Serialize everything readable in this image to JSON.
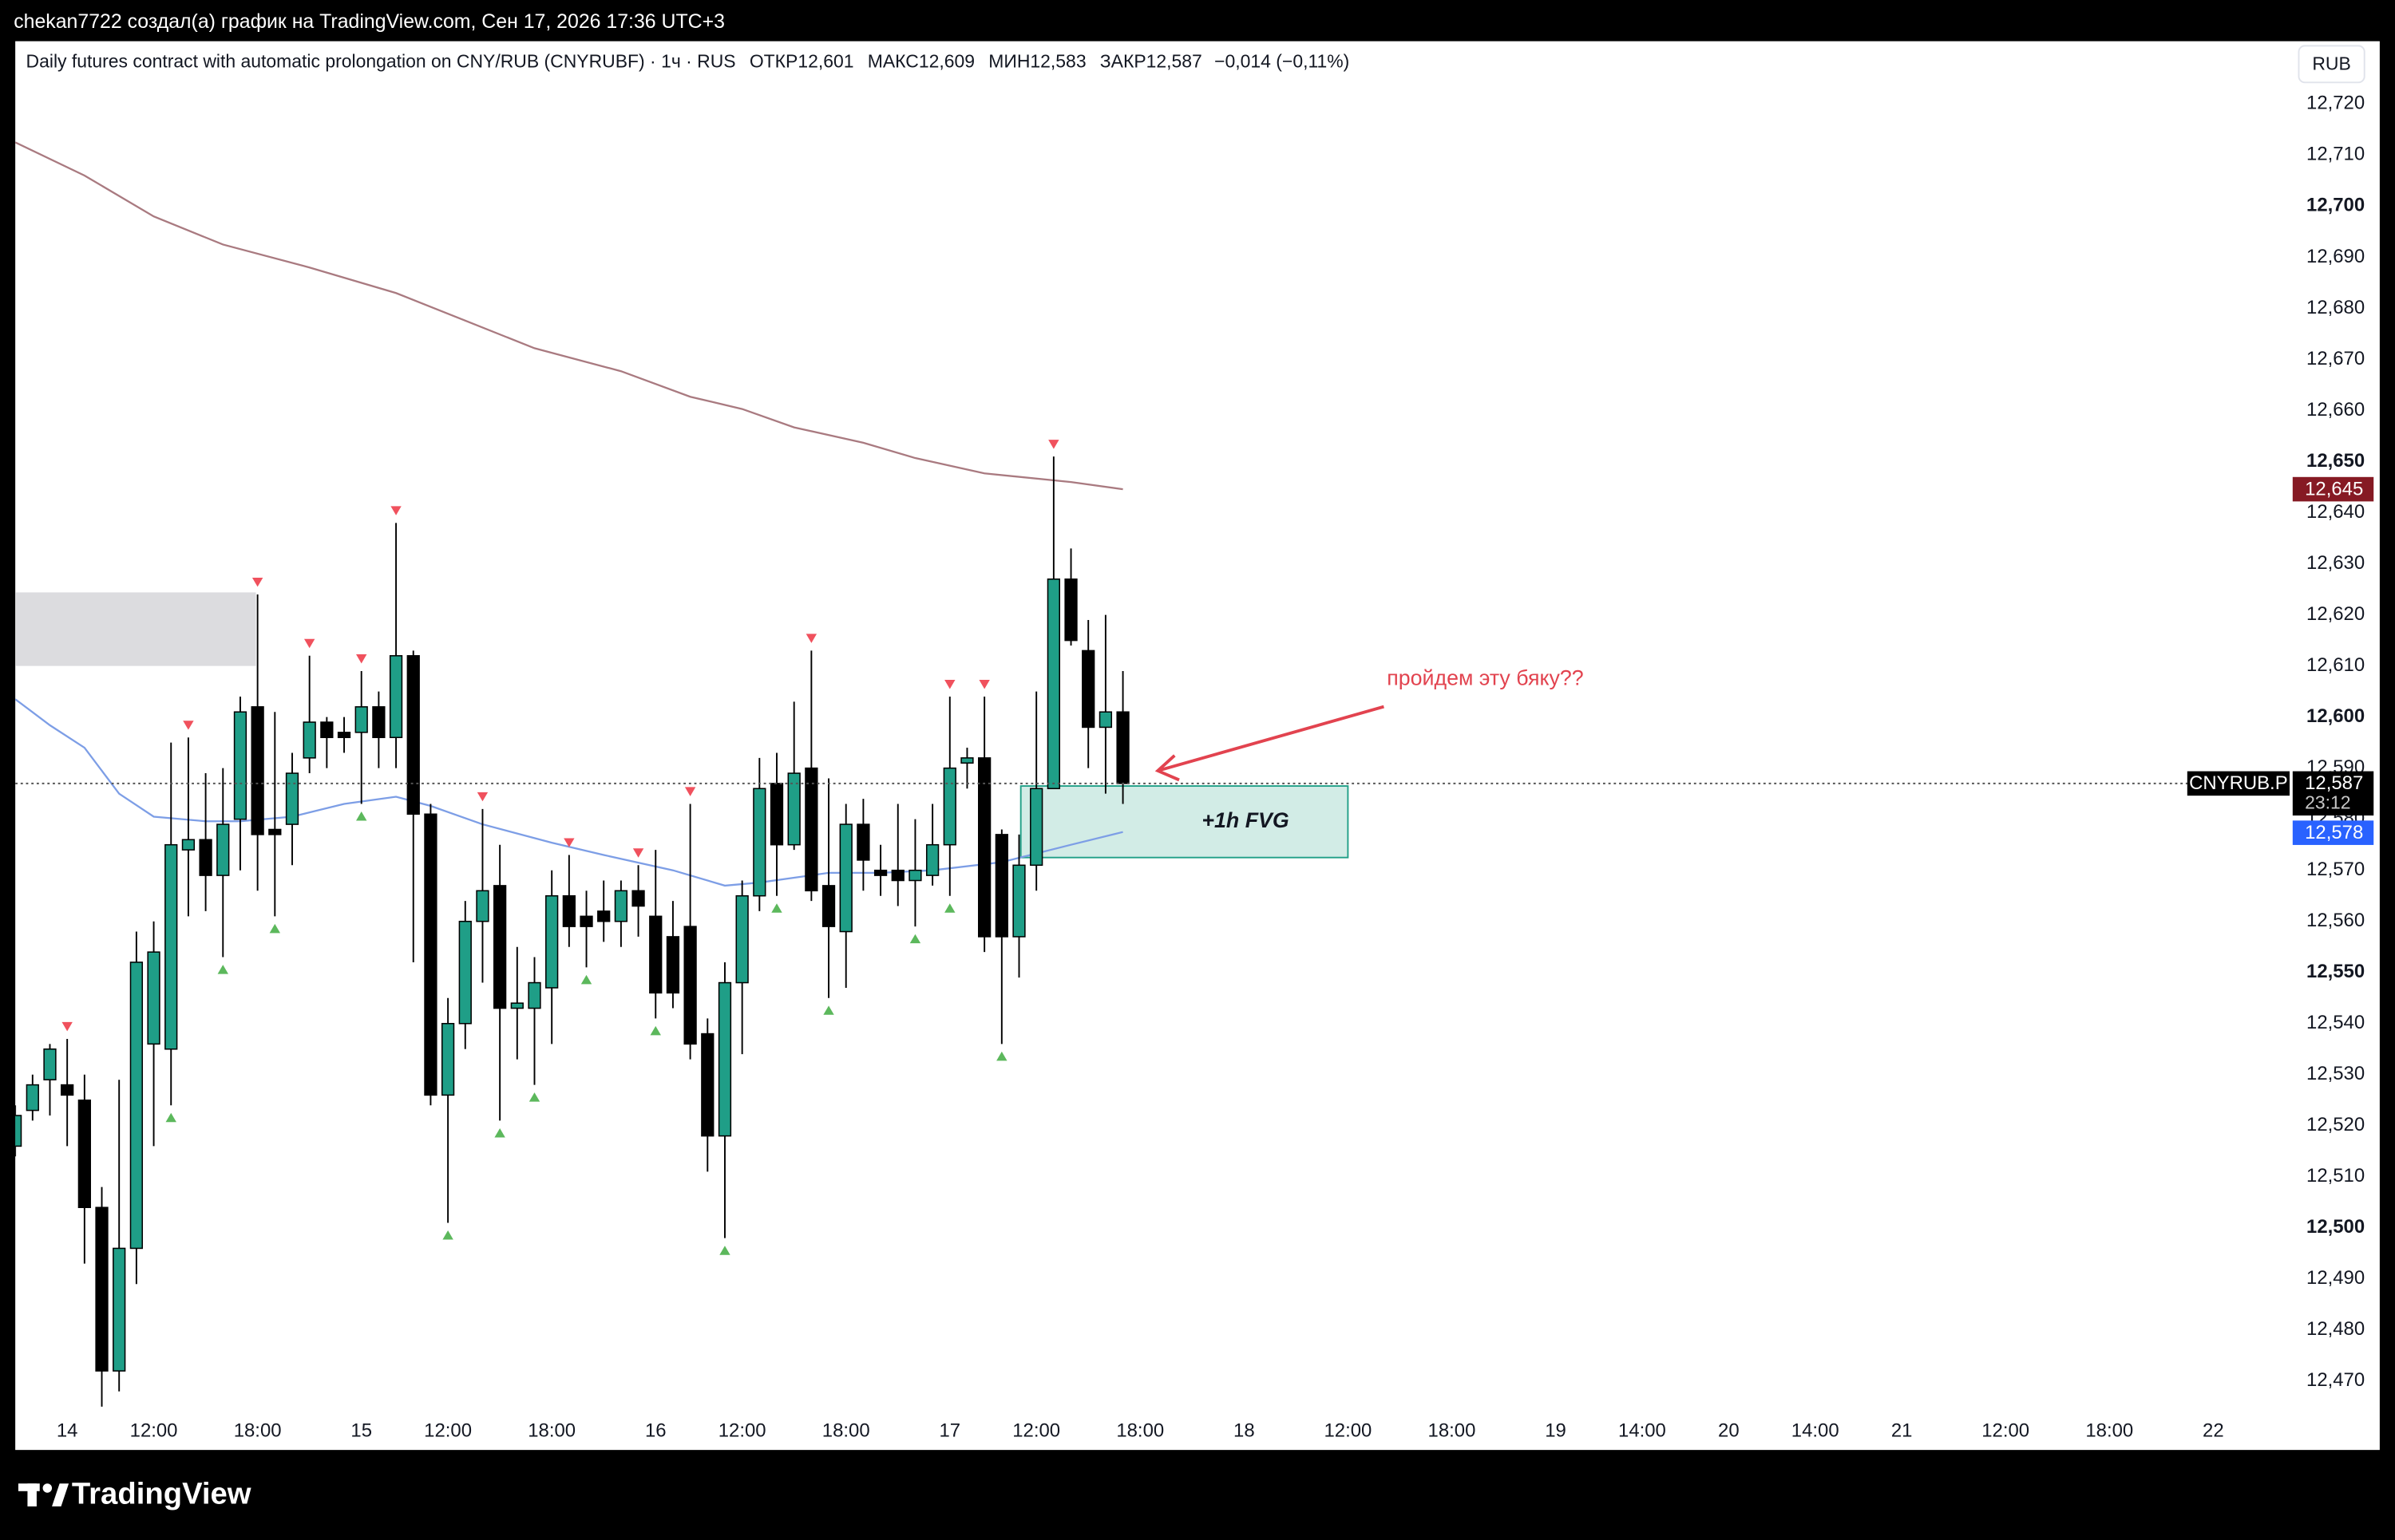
{
  "header": "chekan7722 создал(а) график на TradingView.com, Сен 17, 2026 17:36 UTC+3",
  "brand": "TradingView",
  "chart_data": {
    "type": "candlestick",
    "legend": {
      "title": "Daily futures contract with automatic prolongation on CNY/RUB (CNYRUBF) · 1ч · RUS",
      "items": [
        {
          "label": "ОТКР",
          "value": "12,601"
        },
        {
          "label": "МАКС",
          "value": "12,609"
        },
        {
          "label": "МИН",
          "value": "12,583"
        },
        {
          "label": "ЗАКР",
          "value": "12,587"
        }
      ],
      "change": "−0,014 (−0,11%)"
    },
    "currency": "RUB",
    "up_color": "#1f9e87",
    "down_color": "#000000",
    "x": [
      0,
      1,
      2,
      3,
      4,
      5,
      6,
      7,
      8,
      9,
      10,
      11,
      12,
      13,
      14,
      15,
      16,
      17,
      18,
      19,
      20,
      21,
      22,
      23,
      24,
      25,
      26,
      27,
      28,
      29,
      30,
      31,
      32,
      33,
      34,
      35,
      36,
      37,
      38,
      39,
      40,
      41,
      42,
      43,
      44,
      45,
      46,
      47,
      48,
      49,
      50,
      51,
      52,
      53,
      54,
      55,
      56,
      57,
      58,
      59,
      60,
      61,
      62,
      63,
      64
    ],
    "open": [
      12516,
      12523,
      12529,
      12528,
      12525,
      12504,
      12472,
      12496,
      12536,
      12535,
      12574,
      12576,
      12569,
      12580,
      12602,
      12578,
      12579,
      12592,
      12599,
      12597,
      12597,
      12602,
      12596,
      12612,
      12581,
      12526,
      12540,
      12560,
      12567,
      12543,
      12543,
      12547,
      12565,
      12561,
      12562,
      12560,
      12566,
      12561,
      12557,
      12559,
      12538,
      12518,
      12548,
      12565,
      12587,
      12575,
      12590,
      12567,
      12558,
      12579,
      12570,
      12570,
      12568,
      12569,
      12575,
      12591,
      12592,
      12577,
      12557,
      12571,
      12586,
      12627,
      12613,
      12598,
      12601
    ],
    "high": [
      12524,
      12530,
      12536,
      12537,
      12530,
      12508,
      12529,
      12558,
      12560,
      12595,
      12596,
      12589,
      12590,
      12604,
      12624,
      12601,
      12593,
      12612,
      12600,
      12600,
      12609,
      12605,
      12638,
      12613,
      12583,
      12545,
      12564,
      12582,
      12575,
      12555,
      12553,
      12570,
      12573,
      12566,
      12568,
      12568,
      12571,
      12574,
      12564,
      12583,
      12541,
      12552,
      12568,
      12592,
      12593,
      12603,
      12613,
      12588,
      12583,
      12584,
      12575,
      12583,
      12580,
      12583,
      12604,
      12594,
      12604,
      12578,
      12577,
      12605,
      12651,
      12633,
      12619,
      12620,
      12609
    ],
    "low": [
      12514,
      12521,
      12522,
      12516,
      12493,
      12465,
      12468,
      12489,
      12516,
      12524,
      12561,
      12562,
      12553,
      12570,
      12566,
      12561,
      12571,
      12589,
      12590,
      12593,
      12583,
      12590,
      12590,
      12552,
      12524,
      12501,
      12535,
      12548,
      12521,
      12533,
      12528,
      12536,
      12555,
      12551,
      12556,
      12555,
      12557,
      12541,
      12543,
      12533,
      12511,
      12498,
      12534,
      12562,
      12565,
      12574,
      12564,
      12545,
      12547,
      12566,
      12565,
      12563,
      12559,
      12567,
      12565,
      12586,
      12554,
      12536,
      12549,
      12566,
      12586,
      12614,
      12590,
      12585,
      12583
    ],
    "close": [
      12522,
      12528,
      12535,
      12526,
      12504,
      12472,
      12496,
      12552,
      12554,
      12575,
      12576,
      12569,
      12579,
      12601,
      12577,
      12577,
      12589,
      12599,
      12596,
      12596,
      12602,
      12596,
      12612,
      12581,
      12526,
      12540,
      12560,
      12566,
      12543,
      12544,
      12548,
      12565,
      12559,
      12559,
      12560,
      12566,
      12563,
      12546,
      12546,
      12536,
      12518,
      12548,
      12565,
      12586,
      12575,
      12589,
      12566,
      12559,
      12579,
      12572,
      12569,
      12568,
      12570,
      12575,
      12590,
      12592,
      12557,
      12557,
      12571,
      12586,
      12627,
      12615,
      12598,
      12601,
      12587
    ],
    "pivot_highs": [
      3,
      10,
      14,
      17,
      20,
      22,
      27,
      32,
      36,
      39,
      46,
      54,
      56,
      60
    ],
    "pivot_lows": [
      9,
      12,
      15,
      20,
      25,
      28,
      30,
      33,
      37,
      41,
      44,
      47,
      52,
      54,
      57
    ],
    "lines": [
      {
        "color": "#a97a80",
        "x": [
          0,
          4,
          8,
          12,
          17,
          22,
          26,
          30,
          35,
          39,
          42,
          45,
          49,
          52,
          56,
          61,
          64
        ],
        "values": [
          12712.5,
          12706,
          12698,
          12692.5,
          12688,
          12683,
          12677.6,
          12672.2,
          12667.7,
          12662.7,
          12660.3,
          12656.7,
          12653.7,
          12650.7,
          12647.7,
          12646,
          12644.6
        ]
      },
      {
        "color": "#7d9ee6",
        "x": [
          0,
          2,
          4,
          6,
          8,
          11,
          13,
          16,
          19,
          22,
          24,
          27,
          31,
          34,
          38,
          41,
          43,
          47,
          50,
          53,
          57,
          61,
          64
        ],
        "values": [
          12603.5,
          12598.4,
          12594,
          12585,
          12580.5,
          12579.6,
          12579.6,
          12580.5,
          12583,
          12584.4,
          12582.6,
          12579,
          12575.4,
          12573,
          12570,
          12567,
          12567.6,
          12569.5,
          12569.5,
          12570,
          12571.6,
          12575,
          12577.5
        ]
      }
    ],
    "zones": [
      {
        "color": "#dcdcdf",
        "xlim": [
          0,
          13.9
        ],
        "ylim": [
          12610,
          12624.4
        ]
      },
      {
        "color": "#d2ece6",
        "stroke": "#22a088",
        "xlim": [
          58.1,
          77
        ],
        "ylim": [
          12572.5,
          12586.5
        ],
        "label": "+1h FVG"
      }
    ],
    "tags": {
      "ma_long": "12,645",
      "symbol": "CNYRUB.P",
      "last": "12,587",
      "countdown": "23:12",
      "ma_short": "12,578"
    },
    "annotation": "пройдем эту бяку??",
    "grid": false,
    "xlim": [
      0,
      131.5
    ],
    "ylim": [
      12464,
      12732
    ],
    "xticks": [
      {
        "value": 3,
        "label": "14"
      },
      {
        "value": 8,
        "label": "12:00"
      },
      {
        "value": 14,
        "label": "18:00"
      },
      {
        "value": 20,
        "label": "15"
      },
      {
        "value": 25,
        "label": "12:00"
      },
      {
        "value": 31,
        "label": "18:00"
      },
      {
        "value": 37,
        "label": "16"
      },
      {
        "value": 42,
        "label": "12:00"
      },
      {
        "value": 48,
        "label": "18:00"
      },
      {
        "value": 54,
        "label": "17"
      },
      {
        "value": 59,
        "label": "12:00"
      },
      {
        "value": 65,
        "label": "18:00"
      },
      {
        "value": 71,
        "label": "18"
      },
      {
        "value": 77,
        "label": "12:00"
      },
      {
        "value": 83,
        "label": "18:00"
      },
      {
        "value": 89,
        "label": "19"
      },
      {
        "value": 94,
        "label": "14:00"
      },
      {
        "value": 99,
        "label": "20"
      },
      {
        "value": 104,
        "label": "14:00"
      },
      {
        "value": 109,
        "label": "21"
      },
      {
        "value": 115,
        "label": "12:00"
      },
      {
        "value": 121,
        "label": "18:00"
      },
      {
        "value": 127,
        "label": "22"
      }
    ],
    "yticks": [
      {
        "value": 12470,
        "label": "12,470"
      },
      {
        "value": 12480,
        "label": "12,480"
      },
      {
        "value": 12490,
        "label": "12,490"
      },
      {
        "value": 12500,
        "label": "12,500"
      },
      {
        "value": 12510,
        "label": "12,510"
      },
      {
        "value": 12520,
        "label": "12,520"
      },
      {
        "value": 12530,
        "label": "12,530"
      },
      {
        "value": 12540,
        "label": "12,540"
      },
      {
        "value": 12550,
        "label": "12,550"
      },
      {
        "value": 12560,
        "label": "12,560"
      },
      {
        "value": 12570,
        "label": "12,570"
      },
      {
        "value": 12580,
        "label": "12,580"
      },
      {
        "value": 12590,
        "label": "12,590"
      },
      {
        "value": 12600,
        "label": "12,600"
      },
      {
        "value": 12610,
        "label": "12,610"
      },
      {
        "value": 12620,
        "label": "12,620"
      },
      {
        "value": 12630,
        "label": "12,630"
      },
      {
        "value": 12640,
        "label": "12,640"
      },
      {
        "value": 12650,
        "label": "12,650"
      },
      {
        "value": 12660,
        "label": "12,660"
      },
      {
        "value": 12670,
        "label": "12,670"
      },
      {
        "value": 12680,
        "label": "12,680"
      },
      {
        "value": 12690,
        "label": "12,690"
      },
      {
        "value": 12700,
        "label": "12,700"
      },
      {
        "value": 12710,
        "label": "12,710"
      },
      {
        "value": 12720,
        "label": "12,720"
      }
    ]
  }
}
